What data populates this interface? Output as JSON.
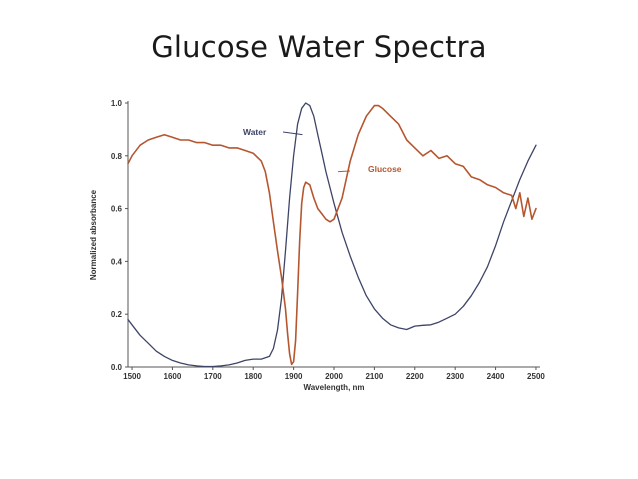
{
  "slide": {
    "title": "Glucose Water Spectra"
  },
  "chart_data": {
    "type": "line",
    "title": "",
    "xlabel": "Wavelength, nm",
    "ylabel": "Normalized absorbance",
    "xlim": [
      1490,
      2510
    ],
    "ylim": [
      0,
      1.0
    ],
    "x_ticks": [
      1500,
      1600,
      1700,
      1800,
      1900,
      2000,
      2100,
      2200,
      2300,
      2400,
      2500
    ],
    "y_ticks": [
      "0.0",
      "0.2",
      "0.4",
      "0.6",
      "0.8",
      "1.0"
    ],
    "grid": false,
    "legend": "inline-annotations",
    "series": [
      {
        "name": "Water",
        "color": "#3d4466",
        "x": [
          1490,
          1500,
          1520,
          1540,
          1560,
          1580,
          1600,
          1620,
          1640,
          1660,
          1680,
          1700,
          1720,
          1740,
          1760,
          1780,
          1800,
          1820,
          1840,
          1850,
          1860,
          1870,
          1880,
          1890,
          1900,
          1910,
          1920,
          1930,
          1940,
          1950,
          1960,
          1970,
          1980,
          2000,
          2020,
          2040,
          2060,
          2080,
          2100,
          2120,
          2140,
          2160,
          2180,
          2200,
          2220,
          2240,
          2260,
          2280,
          2300,
          2320,
          2340,
          2360,
          2380,
          2400,
          2420,
          2440,
          2460,
          2480,
          2500
        ],
        "y": [
          0.18,
          0.16,
          0.12,
          0.09,
          0.06,
          0.04,
          0.025,
          0.015,
          0.008,
          0.004,
          0.002,
          0.002,
          0.004,
          0.008,
          0.015,
          0.025,
          0.03,
          0.03,
          0.04,
          0.07,
          0.14,
          0.26,
          0.44,
          0.64,
          0.8,
          0.92,
          0.98,
          1.0,
          0.99,
          0.95,
          0.88,
          0.81,
          0.74,
          0.62,
          0.51,
          0.42,
          0.34,
          0.27,
          0.22,
          0.185,
          0.16,
          0.148,
          0.142,
          0.155,
          0.158,
          0.16,
          0.17,
          0.185,
          0.2,
          0.23,
          0.27,
          0.32,
          0.38,
          0.46,
          0.55,
          0.63,
          0.71,
          0.78,
          0.84
        ]
      },
      {
        "name": "Glucose",
        "color": "#b5562f",
        "x": [
          1490,
          1500,
          1520,
          1540,
          1560,
          1580,
          1600,
          1620,
          1640,
          1660,
          1680,
          1700,
          1720,
          1740,
          1760,
          1780,
          1800,
          1820,
          1830,
          1840,
          1850,
          1860,
          1870,
          1880,
          1885,
          1890,
          1895,
          1900,
          1905,
          1910,
          1915,
          1920,
          1925,
          1930,
          1940,
          1950,
          1960,
          1970,
          1980,
          1990,
          2000,
          2020,
          2040,
          2060,
          2080,
          2100,
          2110,
          2120,
          2140,
          2160,
          2180,
          2200,
          2220,
          2240,
          2260,
          2280,
          2300,
          2320,
          2340,
          2360,
          2380,
          2400,
          2420,
          2440,
          2450,
          2460,
          2470,
          2480,
          2490,
          2500
        ],
        "y": [
          0.77,
          0.8,
          0.84,
          0.86,
          0.87,
          0.88,
          0.87,
          0.86,
          0.86,
          0.85,
          0.85,
          0.84,
          0.84,
          0.83,
          0.83,
          0.82,
          0.81,
          0.78,
          0.74,
          0.66,
          0.55,
          0.44,
          0.34,
          0.22,
          0.13,
          0.05,
          0.01,
          0.02,
          0.1,
          0.28,
          0.48,
          0.62,
          0.68,
          0.7,
          0.69,
          0.64,
          0.6,
          0.58,
          0.56,
          0.55,
          0.56,
          0.64,
          0.78,
          0.88,
          0.95,
          0.99,
          0.99,
          0.98,
          0.95,
          0.92,
          0.86,
          0.83,
          0.8,
          0.82,
          0.79,
          0.8,
          0.77,
          0.76,
          0.72,
          0.71,
          0.69,
          0.68,
          0.66,
          0.65,
          0.6,
          0.66,
          0.57,
          0.64,
          0.56,
          0.6
        ]
      }
    ],
    "annotations": [
      {
        "text": "Water",
        "series": "Water",
        "anchor_x": 1922,
        "anchor_y": 0.88
      },
      {
        "text": "Glucose",
        "series": "Glucose",
        "anchor_x": 2010,
        "anchor_y": 0.74
      }
    ]
  }
}
